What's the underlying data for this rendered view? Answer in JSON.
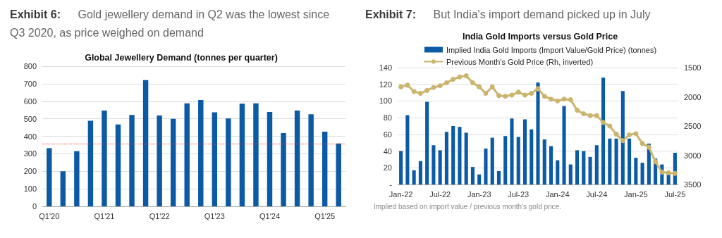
{
  "chart_data": [
    {
      "type": "bar",
      "title": "Exhibit 6: Gold jewellery demand in Q2 was the lowest since Q3 2020, as price weighed on demand",
      "subtitle": "Global Jewellery Demand (tonnes per quarter)",
      "categories": [
        "Q1'20",
        null,
        null,
        null,
        "Q1'21",
        null,
        null,
        null,
        "Q1'22",
        null,
        null,
        null,
        "Q1'23",
        null,
        null,
        null,
        "Q1'24",
        null,
        null,
        null,
        "Q1'25",
        null
      ],
      "values": [
        332,
        200,
        315,
        488,
        547,
        467,
        522,
        721,
        519,
        499,
        588,
        607,
        537,
        502,
        586,
        588,
        539,
        418,
        547,
        526,
        426,
        359
      ],
      "color": "#0b5aa5",
      "ylim": [
        0,
        800
      ],
      "yticks": [
        0,
        100,
        200,
        300,
        400,
        500,
        600,
        700,
        800
      ],
      "grid": "y",
      "ref_lines": [
        {
          "axis": "y",
          "value": 356,
          "color": "#e8413c",
          "line_style": "dotted"
        }
      ]
    },
    {
      "type": "bar",
      "title": "Exhibit 7: But India's import demand picked up in July",
      "subtitle": "India Gold Imports versus Gold Price",
      "categories": [
        "Jan-22",
        null,
        null,
        null,
        null,
        null,
        "Jul-22",
        null,
        null,
        null,
        null,
        null,
        "Jan-23",
        null,
        null,
        null,
        null,
        null,
        "Jul-23",
        null,
        null,
        null,
        null,
        null,
        "Jan-24",
        null,
        null,
        null,
        null,
        null,
        "Jul-24",
        null,
        null,
        null,
        null,
        null,
        "Jan-25",
        null,
        null,
        null,
        null,
        null,
        "Jul-25"
      ],
      "series": [
        {
          "name": "Implied India Gold Imports (Import Value/Gold Price) (tonnes)",
          "color": "#0b5aa5",
          "values": [
            40,
            83,
            17,
            28,
            99,
            47,
            41,
            63,
            70,
            69,
            62,
            21,
            12,
            43,
            56,
            16,
            58,
            79,
            57,
            78,
            66,
            122,
            54,
            46,
            29,
            94,
            24,
            41,
            40,
            33,
            47,
            128,
            55,
            55,
            112,
            55,
            32,
            26,
            49,
            31,
            24,
            13,
            38
          ]
        },
        {
          "type": "line",
          "axis": "y2",
          "name": "Previous Month's Gold Price (Rh, inverted)",
          "color": "#cbb56e",
          "values": [
            1830,
            1800,
            1910,
            1940,
            1890,
            1840,
            1810,
            1760,
            1700,
            1660,
            1640,
            1760,
            1830,
            1940,
            1830,
            1980,
            1990,
            1970,
            1920,
            1970,
            1940,
            1860,
            1990,
            2040,
            2070,
            2040,
            2050,
            2230,
            2290,
            2320,
            2320,
            2440,
            2500,
            2640,
            2750,
            2650,
            2630,
            2800,
            2860,
            3110,
            3290,
            3300,
            3310
          ]
        }
      ],
      "ylim": [
        0,
        140
      ],
      "yticks": [
        {
          "value": 0,
          "label": "-"
        },
        20,
        40,
        60,
        80,
        100,
        120,
        140
      ],
      "y2lim": [
        3500,
        1500
      ],
      "y2ticks": [
        1500,
        2000,
        2500,
        3000,
        3500
      ],
      "grid": "y",
      "legend": "top",
      "marker": "circle",
      "annotations": [
        "Implied based on import value / previous month's gold price."
      ]
    }
  ]
}
